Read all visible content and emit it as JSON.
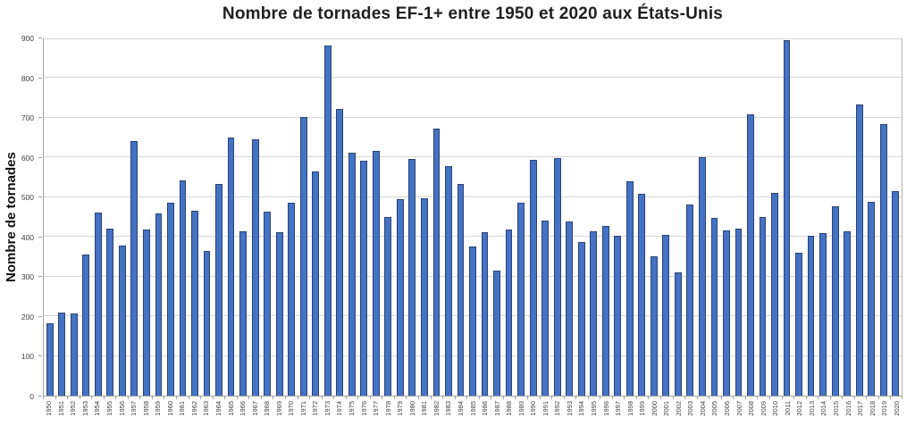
{
  "chart_data": {
    "type": "bar",
    "title": "Nombre de tornades EF-1+ entre 1950 et 2020 aux États-Unis",
    "xlabel": "",
    "ylabel": "Nombre de tornades",
    "ylim": [
      0,
      900
    ],
    "ytick_interval": 100,
    "grid": true,
    "legend": false,
    "bar_fill": "#4472C4",
    "bar_border": "#2A4273",
    "categories": [
      "1950",
      "1951",
      "1952",
      "1953",
      "1954",
      "1955",
      "1956",
      "1957",
      "1958",
      "1959",
      "1960",
      "1961",
      "1962",
      "1963",
      "1964",
      "1965",
      "1966",
      "1967",
      "1968",
      "1969",
      "1970",
      "1971",
      "1972",
      "1973",
      "1974",
      "1975",
      "1976",
      "1977",
      "1978",
      "1979",
      "1980",
      "1981",
      "1982",
      "1983",
      "1984",
      "1985",
      "1986",
      "1987",
      "1988",
      "1989",
      "1990",
      "1991",
      "1992",
      "1993",
      "1994",
      "1995",
      "1996",
      "1997",
      "1998",
      "1999",
      "2000",
      "2001",
      "2002",
      "2003",
      "2004",
      "2005",
      "2006",
      "2007",
      "2008",
      "2009",
      "2010",
      "2011",
      "2012",
      "2013",
      "2014",
      "2015",
      "2016",
      "2017",
      "2018",
      "2019",
      "2020"
    ],
    "values": [
      183,
      210,
      206,
      355,
      461,
      420,
      379,
      642,
      419,
      458,
      487,
      543,
      465,
      365,
      533,
      651,
      415,
      645,
      463,
      412,
      487,
      701,
      565,
      883,
      722,
      611,
      592,
      616,
      450,
      494,
      597,
      497,
      672,
      579,
      533,
      375,
      411,
      314,
      418,
      486,
      595,
      442,
      598,
      438,
      387,
      415,
      428,
      403,
      540,
      508,
      352,
      404,
      311,
      482,
      600,
      447,
      417,
      421,
      708,
      451,
      510,
      895,
      361,
      403,
      409,
      477,
      414,
      734,
      488,
      684,
      515
    ]
  }
}
